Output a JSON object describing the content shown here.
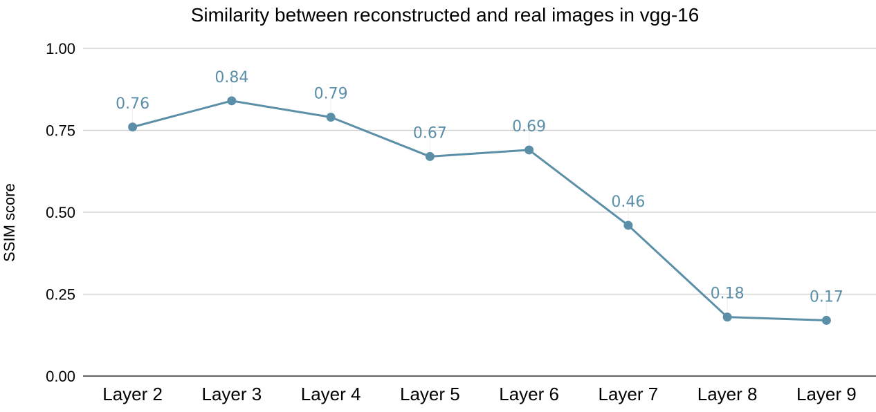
{
  "chart_data": {
    "type": "line",
    "title": "Similarity between reconstructed and real images in vgg-16",
    "xlabel": "",
    "ylabel": "SSIM score",
    "categories": [
      "Layer 2",
      "Layer 3",
      "Layer 4",
      "Layer 5",
      "Layer 6",
      "Layer 7",
      "Layer 8",
      "Layer 9"
    ],
    "series": [
      {
        "name": "SSIM score",
        "values": [
          0.76,
          0.84,
          0.79,
          0.67,
          0.69,
          0.46,
          0.18,
          0.17
        ],
        "labels": [
          "0.76",
          "0.84",
          "0.79",
          "0.67",
          "0.69",
          "0.46",
          "0.18",
          "0.17"
        ]
      }
    ],
    "ylim": [
      0,
      1
    ],
    "yticks": [
      0,
      0.25,
      0.5,
      0.75,
      1
    ],
    "ytick_labels": [
      "0.00",
      "0.25",
      "0.50",
      "0.75",
      "1.00"
    ],
    "grid": true,
    "line_color": "#5b8fa8",
    "label_color": "#5b8fa8"
  }
}
